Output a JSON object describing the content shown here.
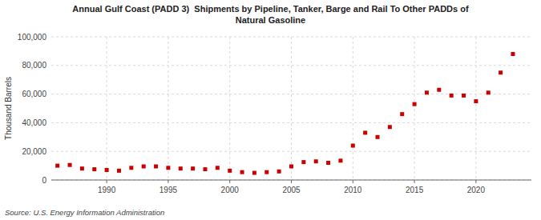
{
  "chart_data": {
    "type": "scatter",
    "title": "Annual Gulf Coast (PADD 3)  Shipments by Pipeline, Tanker, Barge and Rail To Other PADDs of\nNatural Gasoline",
    "ylabel": "Thousand Barrels",
    "annotations": [
      "Source: U.S. Energy Information Administration"
    ],
    "x": [
      1986,
      1987,
      1988,
      1989,
      1990,
      1991,
      1992,
      1993,
      1994,
      1995,
      1996,
      1997,
      1998,
      1999,
      2000,
      2001,
      2002,
      2003,
      2004,
      2005,
      2006,
      2007,
      2008,
      2009,
      2010,
      2011,
      2012,
      2013,
      2014,
      2015,
      2016,
      2017,
      2018,
      2019,
      2020,
      2021,
      2022,
      2023
    ],
    "values": [
      10000,
      10500,
      8000,
      7500,
      7000,
      6500,
      8500,
      9500,
      9500,
      8500,
      8000,
      8000,
      7500,
      8500,
      6500,
      5500,
      5000,
      5500,
      6000,
      9500,
      12500,
      13000,
      12000,
      13500,
      24000,
      33000,
      30000,
      37000,
      46000,
      53000,
      61000,
      63000,
      59000,
      59000,
      55000,
      61000,
      75000,
      88000
    ],
    "color": "#cc0000",
    "marker": "square",
    "xlim": [
      1985.5,
      2024.5
    ],
    "xticks": [
      1990,
      1995,
      2000,
      2005,
      2010,
      2015,
      2020
    ],
    "ylim": [
      0,
      100000
    ],
    "yticks": [
      0,
      {
        "value": 20000,
        "label": "20,000"
      },
      {
        "value": 40000,
        "label": "40,000"
      },
      {
        "value": 60000,
        "label": "60,000"
      },
      {
        "value": 80000,
        "label": "80,000"
      },
      {
        "value": 100000,
        "label": "100,000"
      }
    ],
    "grid": true
  }
}
